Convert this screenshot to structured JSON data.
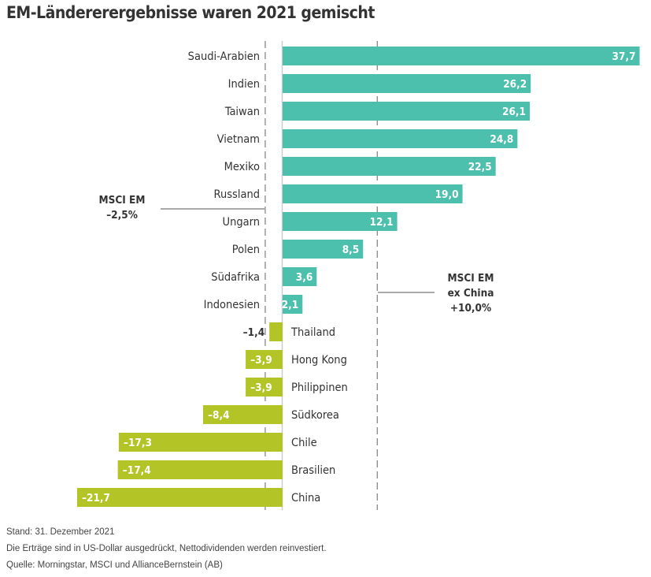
{
  "chart_data": {
    "type": "bar",
    "orientation": "horizontal",
    "title": "EM-Ländererergebnisse waren 2021 gemischt",
    "categories": [
      "Saudi-Arabien",
      "Indien",
      "Taiwan",
      "Vietnam",
      "Mexiko",
      "Russland",
      "Ungarn",
      "Polen",
      "Südafrika",
      "Indonesien",
      "Thailand",
      "Hong Kong",
      "Philippinen",
      "Südkorea",
      "Chile",
      "Brasilien",
      "China"
    ],
    "values": [
      37.7,
      26.2,
      26.1,
      24.8,
      22.5,
      19.0,
      12.1,
      8.5,
      3.6,
      2.1,
      -1.4,
      -3.9,
      -3.9,
      -8.4,
      -17.3,
      -17.4,
      -21.7
    ],
    "value_labels": [
      "37,7",
      "26,2",
      "26,1",
      "24,8",
      "22,5",
      "19,0",
      "12,1",
      "8,5",
      "3,6",
      "2,1",
      "–1,4",
      "–3,9",
      "–3,9",
      "–8,4",
      "–17,3",
      "–17,4",
      "–21,7"
    ],
    "colors": {
      "positive": "#4dbfad",
      "negative": "#b3c426"
    },
    "reference_lines": [
      {
        "value": -2.5,
        "label_lines": [
          "MSCI EM",
          "–2,5%"
        ]
      },
      {
        "value": 10.0,
        "label_lines": [
          "MSCI EM",
          "ex China",
          "+10,0%"
        ]
      }
    ],
    "xlim": [
      -22,
      38
    ],
    "grid": false
  },
  "footnotes": [
    "Stand: 31. Dezember 2021",
    "Die Erträge sind in US-Dollar ausgedrückt, Nettodividenden werden reinvestiert.",
    "Quelle: Morningstar, MSCI und AllianceBernstein (AB)"
  ]
}
